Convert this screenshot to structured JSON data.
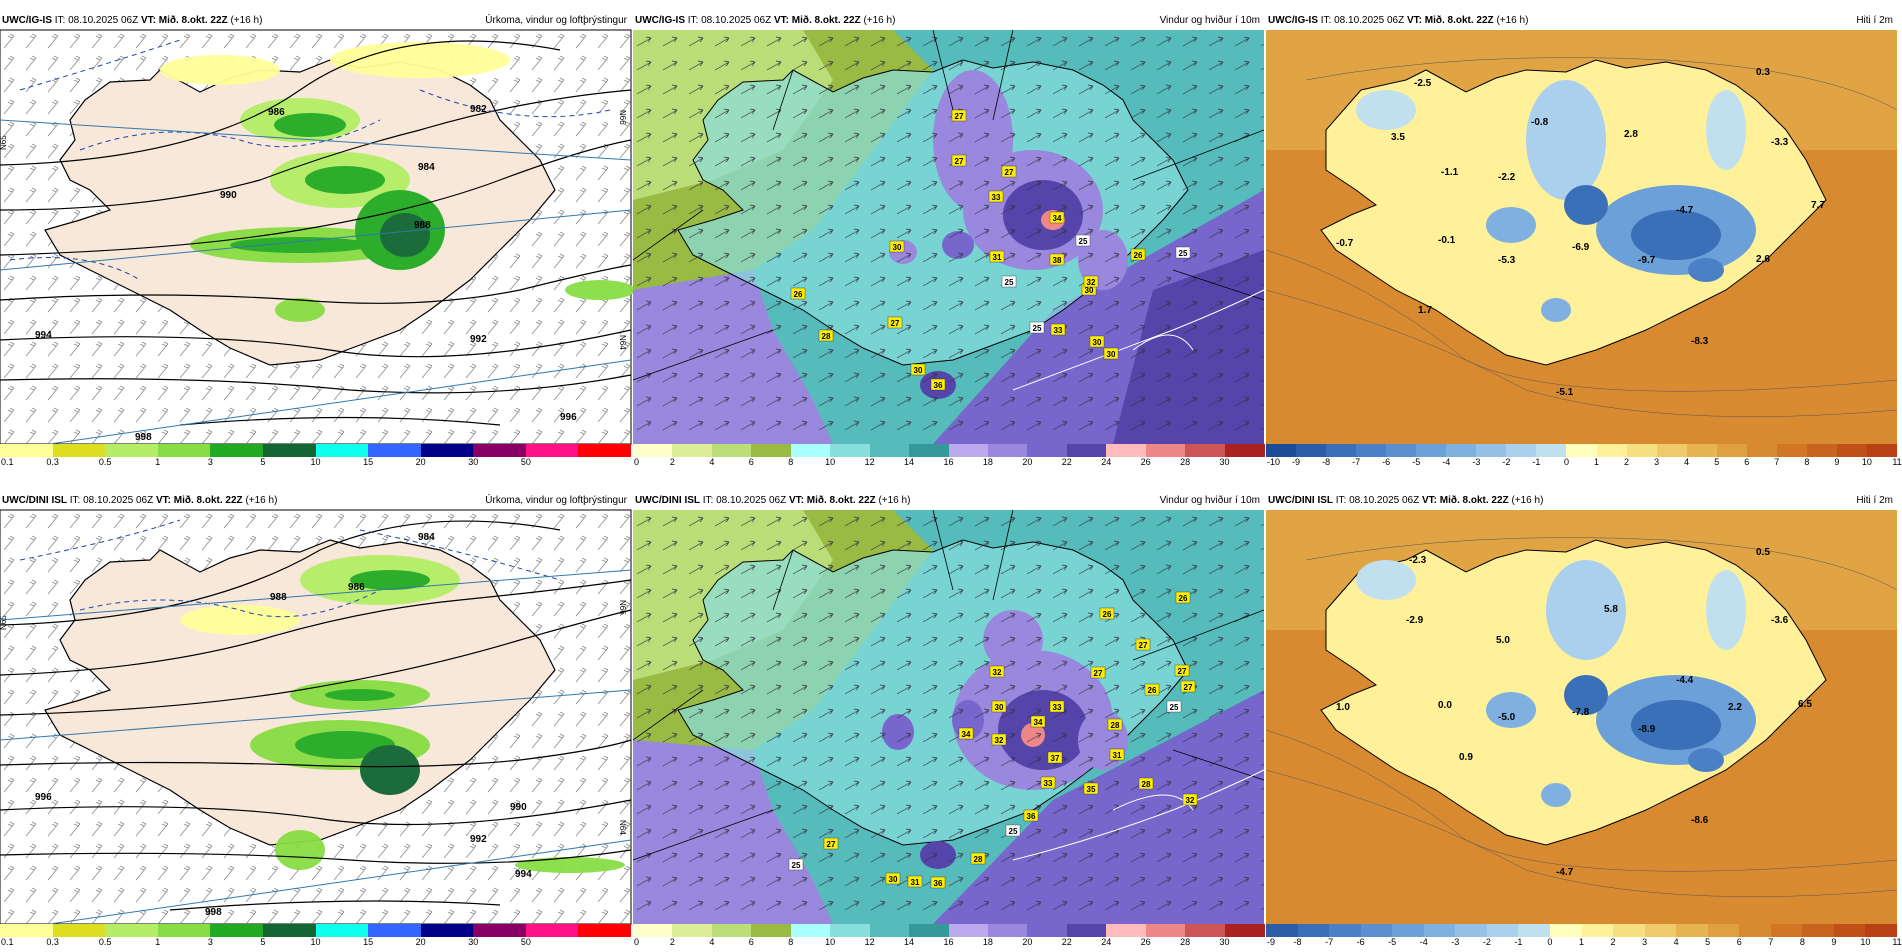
{
  "rows": [
    {
      "model": "UWC/IG-IS",
      "it_prefix": "IT:",
      "it": "08.10.2025 06Z",
      "vt_prefix": "VT:",
      "vt": "Mið. 8.okt. 22Z",
      "lead": "(+16 h)",
      "panels": {
        "precip": {
          "title": "Úrkoma, vindur og loftþrýstingur",
          "isobar_labels": [
            "982",
            "984",
            "986",
            "988",
            "990",
            "992",
            "994",
            "996",
            "998"
          ],
          "lat_labels": [
            "N66",
            "N65",
            "N64"
          ]
        },
        "wind": {
          "title": "Vindur og hviður í 10m",
          "gust_labels": [
            "27",
            "27",
            "27",
            "33",
            "34",
            "30",
            "31",
            "38",
            "30",
            "32",
            "26",
            "26",
            "28",
            "27",
            "25",
            "30",
            "33",
            "36",
            "25",
            "25",
            "25",
            "30",
            "30"
          ]
        },
        "temp": {
          "title": "Hiti í 2m",
          "values": [
            "-2.5",
            "0.3",
            "3.5",
            "-0.8",
            "2.8",
            "-3.3",
            "-1.1",
            "-2.2",
            "-4.7",
            "7.7",
            "-0.7",
            "-0.1",
            "-5.3",
            "-6.9",
            "-9.7",
            "2.6",
            "1.7",
            "-8.3",
            "-5.1"
          ]
        }
      }
    },
    {
      "model": "UWC/DINI ISL",
      "it_prefix": "IT:",
      "it": "08.10.2025 06Z",
      "vt_prefix": "VT:",
      "vt": "Mið. 8.okt. 22Z",
      "lead": "(+16 h)",
      "panels": {
        "precip": {
          "title": "Úrkoma, vindur og loftþrýstingur",
          "isobar_labels": [
            "984",
            "986",
            "988",
            "990",
            "992",
            "994",
            "996",
            "998"
          ],
          "lat_labels": [
            "N66",
            "N65",
            "N64"
          ]
        },
        "wind": {
          "title": "Vindur og hviður í 10m",
          "gust_labels": [
            "26",
            "26",
            "27",
            "27",
            "27",
            "32",
            "30",
            "33",
            "28",
            "34",
            "34",
            "32",
            "37",
            "31",
            "33",
            "26",
            "25",
            "27",
            "36",
            "35",
            "28",
            "25",
            "32",
            "27",
            "25",
            "28",
            "31",
            "36",
            "30"
          ]
        },
        "temp": {
          "title": "Hiti í 2m",
          "values": [
            "-2.3",
            "0.5",
            "-2.9",
            "5.0",
            "5.8",
            "-3.6",
            "-4.4",
            "1.0",
            "0.0",
            "-5.0",
            "-7.8",
            "-8.9",
            "2.2",
            "6.5",
            "0.9",
            "-8.6",
            "-4.7"
          ]
        }
      }
    }
  ],
  "legends": {
    "precip": {
      "ticks": [
        "0.1",
        "0.3",
        "0.5",
        "1",
        "3",
        "5",
        "10",
        "15",
        "20",
        "30",
        "50"
      ],
      "colors": [
        "#ffff99",
        "#dddd22",
        "#b3ee66",
        "#88dd44",
        "#22aa22",
        "#116633",
        "#11ffee",
        "#3366ff",
        "#000088",
        "#880066",
        "#ff1188",
        "#ff0000"
      ]
    },
    "wind": {
      "ticks": [
        "0",
        "2",
        "4",
        "6",
        "8",
        "10",
        "12",
        "14",
        "16",
        "18",
        "20",
        "22",
        "24",
        "26",
        "28",
        "30"
      ],
      "colors": [
        "#ffffcc",
        "#ddee99",
        "#bbdd77",
        "#99bb44",
        "#aaffff",
        "#88dddd",
        "#55bbbb",
        "#339999",
        "#bbaaee",
        "#9988dd",
        "#7766cc",
        "#5544aa",
        "#ffbbbb",
        "#ee8888",
        "#cc5555",
        "#aa2222"
      ]
    },
    "temp_top": {
      "ticks": [
        "-10",
        "-9",
        "-8",
        "-7",
        "-6",
        "-5",
        "-4",
        "-3",
        "-2",
        "-1",
        "0",
        "1",
        "2",
        "3",
        "4",
        "5",
        "6",
        "7",
        "8",
        "9",
        "10",
        "11"
      ],
      "colors": [
        "#1a4d99",
        "#2a5ea8",
        "#3a70b8",
        "#4a80c5",
        "#5b90d0",
        "#6ca0d8",
        "#80b0e0",
        "#95c0e8",
        "#aad0ee",
        "#c0e0f0",
        "#ffffbb",
        "#fff09a",
        "#f6df80",
        "#eecb68",
        "#e6b552",
        "#dfa040",
        "#d88a30",
        "#d07625",
        "#c8641e",
        "#c05018",
        "#b84014"
      ]
    },
    "temp_bottom": {
      "ticks": [
        "-9",
        "-8",
        "-7",
        "-6",
        "-5",
        "-4",
        "-3",
        "-2",
        "-1",
        "0",
        "1",
        "2",
        "3",
        "4",
        "5",
        "6",
        "7",
        "8",
        "9",
        "10",
        "11"
      ],
      "colors": [
        "#2a5ea8",
        "#3a70b8",
        "#4a80c5",
        "#5b90d0",
        "#6ca0d8",
        "#80b0e0",
        "#95c0e8",
        "#aad0ee",
        "#c0e0f0",
        "#ffffbb",
        "#fff09a",
        "#f6df80",
        "#eecb68",
        "#e6b552",
        "#dfa040",
        "#d88a30",
        "#d07625",
        "#c8641e",
        "#c05018",
        "#b84014"
      ]
    }
  }
}
